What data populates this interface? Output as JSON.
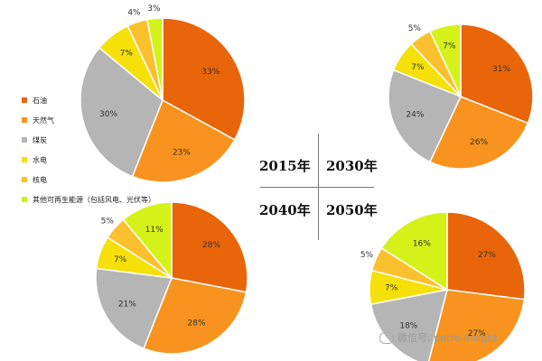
{
  "legend": [
    {
      "label": "石油",
      "color": "#E8650A"
    },
    {
      "label": "天然气",
      "color": "#F7931E"
    },
    {
      "label": "煤炭",
      "color": "#B5B5B5"
    },
    {
      "label": "水电",
      "color": "#F5E00A"
    },
    {
      "label": "核电",
      "color": "#FBC02D"
    },
    {
      "label": "其他可再生能源（包括风电、光伏等）",
      "color": "#D4F21A"
    }
  ],
  "years": [
    "2015年",
    "2030年",
    "2040年",
    "2050年"
  ],
  "watermark": "微信号: petro-insight",
  "chart_data": [
    {
      "type": "pie",
      "title": "2015年",
      "categories": [
        "石油",
        "天然气",
        "煤炭",
        "水电",
        "核电",
        "其他可再生能源（包括风电、光伏等）"
      ],
      "values": [
        33,
        23,
        30,
        7,
        4,
        3
      ],
      "labels": [
        "33%",
        "23%",
        "30%",
        "7%",
        "4%",
        "3%"
      ]
    },
    {
      "type": "pie",
      "title": "2030年",
      "categories": [
        "石油",
        "天然气",
        "煤炭",
        "水电",
        "核电",
        "其他可再生能源（包括风电、光伏等）"
      ],
      "values": [
        31,
        26,
        24,
        7,
        5,
        7
      ],
      "labels": [
        "31%",
        "26%",
        "24%",
        "7%",
        "5%",
        "7%"
      ]
    },
    {
      "type": "pie",
      "title": "2040年",
      "categories": [
        "石油",
        "天然气",
        "煤炭",
        "水电",
        "核电",
        "其他可再生能源（包括风电、光伏等）"
      ],
      "values": [
        28,
        28,
        21,
        7,
        5,
        11
      ],
      "labels": [
        "28%",
        "28%",
        "21%",
        "7%",
        "5%",
        "11%"
      ]
    },
    {
      "type": "pie",
      "title": "2050年",
      "categories": [
        "石油",
        "天然气",
        "煤炭",
        "水电",
        "核电",
        "其他可再生能源（包括风电、光伏等）"
      ],
      "values": [
        27,
        27,
        18,
        7,
        5,
        16
      ],
      "labels": [
        "27%",
        "27%",
        "18%",
        "7%",
        "5%",
        "16%"
      ]
    }
  ]
}
